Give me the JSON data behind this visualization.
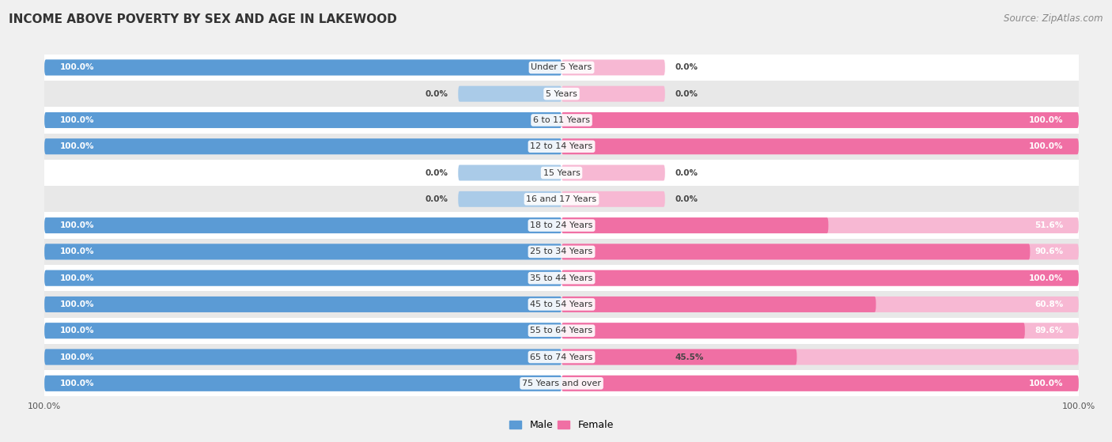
{
  "title": "INCOME ABOVE POVERTY BY SEX AND AGE IN LAKEWOOD",
  "source": "Source: ZipAtlas.com",
  "categories": [
    "Under 5 Years",
    "5 Years",
    "6 to 11 Years",
    "12 to 14 Years",
    "15 Years",
    "16 and 17 Years",
    "18 to 24 Years",
    "25 to 34 Years",
    "35 to 44 Years",
    "45 to 54 Years",
    "55 to 64 Years",
    "65 to 74 Years",
    "75 Years and over"
  ],
  "male_values": [
    100.0,
    0.0,
    100.0,
    100.0,
    0.0,
    0.0,
    100.0,
    100.0,
    100.0,
    100.0,
    100.0,
    100.0,
    100.0
  ],
  "female_values": [
    0.0,
    0.0,
    100.0,
    100.0,
    0.0,
    0.0,
    51.6,
    90.6,
    100.0,
    60.8,
    89.6,
    45.5,
    100.0
  ],
  "male_color": "#5b9bd5",
  "female_color": "#f06fa4",
  "male_color_light": "#aacbe8",
  "female_color_light": "#f7b8d3",
  "row_color_odd": "#e8e8e8",
  "row_color_even": "#f0f0f0",
  "bg_color": "#f0f0f0",
  "title_fontsize": 11,
  "source_fontsize": 8.5,
  "label_fontsize": 8,
  "value_fontsize": 7.5,
  "legend_fontsize": 9,
  "axis_label_fontsize": 8
}
